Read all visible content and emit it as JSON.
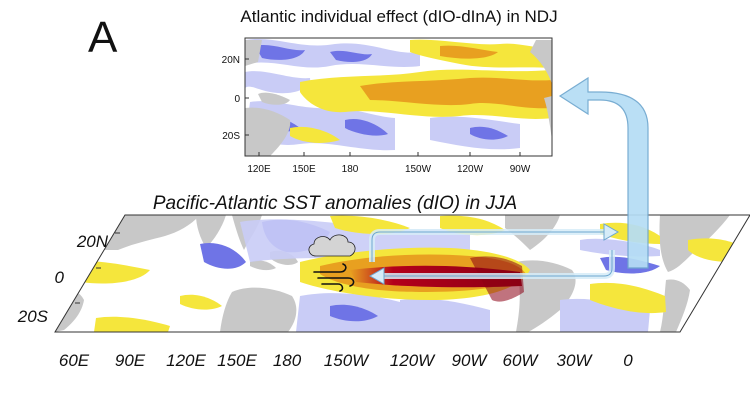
{
  "panel_label": "A",
  "top_panel": {
    "title": "Atlantic individual effect (dIO-dInA) in NDJ",
    "lat_labels": [
      "20N",
      "0",
      "20S"
    ],
    "lon_labels": [
      "120E",
      "150E",
      "180",
      "150W",
      "120W",
      "90W"
    ]
  },
  "bottom_panel": {
    "title": "Pacific-Atlantic SST anomalies (dIO) in JJA",
    "lat_labels": [
      "20N",
      "0",
      "20S"
    ],
    "lon_labels": [
      "60E",
      "90E",
      "120E",
      "150E",
      "180",
      "150W",
      "120W",
      "90W",
      "60W",
      "30W",
      "0"
    ]
  },
  "colors": {
    "warm_strong": "#b3001b",
    "warm_mid": "#e8a020",
    "warm_light": "#f5e63c",
    "cool_mid": "#6f74e6",
    "cool_light": "#c9ccf6",
    "land": "#c8c8c8",
    "arrow_fill": "#b5ddf5",
    "arrow_stroke": "#6ea7cf"
  },
  "icons": [
    "cloud-icon",
    "wind-icon",
    "walker-circulation-arrow",
    "teleconnection-arrow"
  ]
}
